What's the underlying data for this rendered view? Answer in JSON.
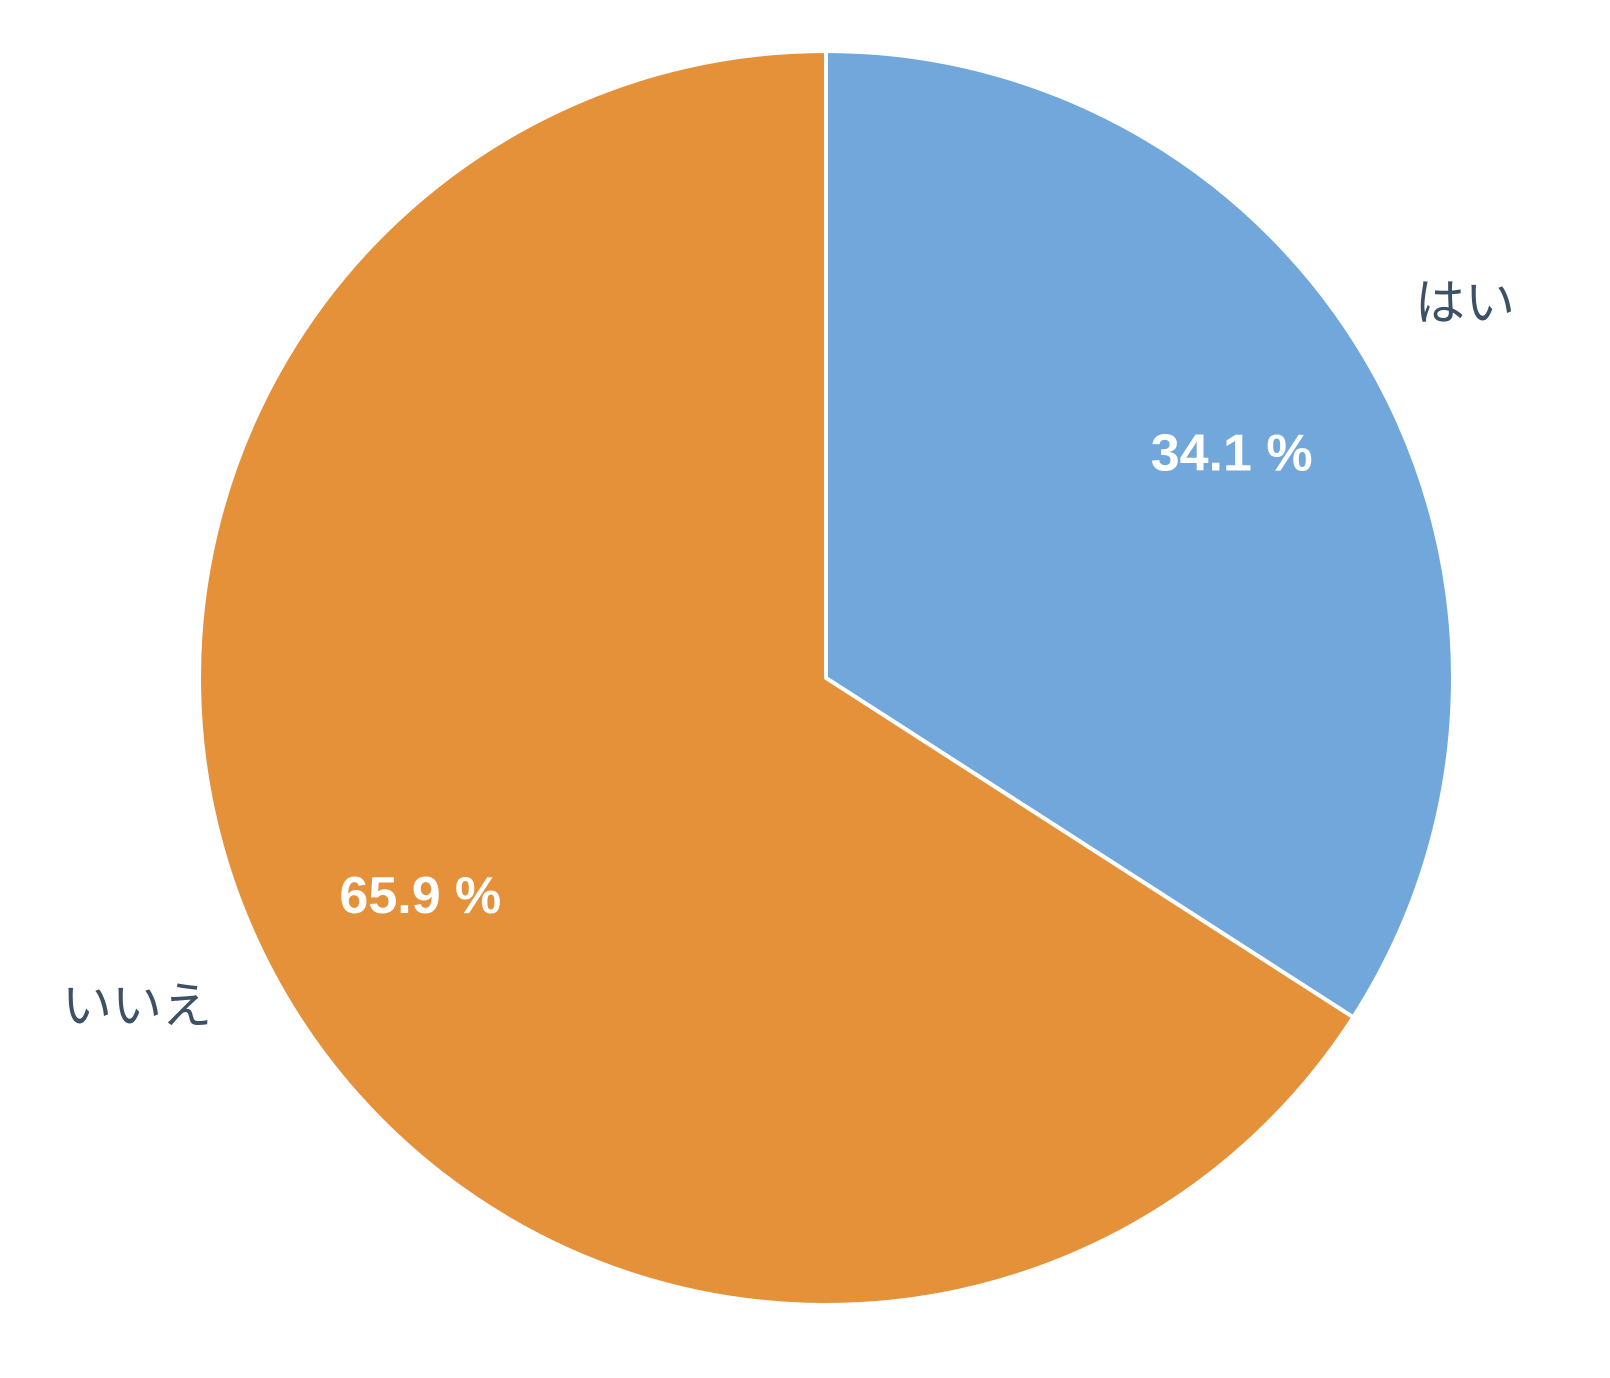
{
  "chart_data": {
    "type": "pie",
    "categories": [
      "はい",
      "いいえ"
    ],
    "values": [
      34.1,
      65.9
    ],
    "value_labels": [
      "34.1 %",
      "65.9 %"
    ],
    "colors": [
      "#72a7db",
      "#e5913a"
    ]
  }
}
